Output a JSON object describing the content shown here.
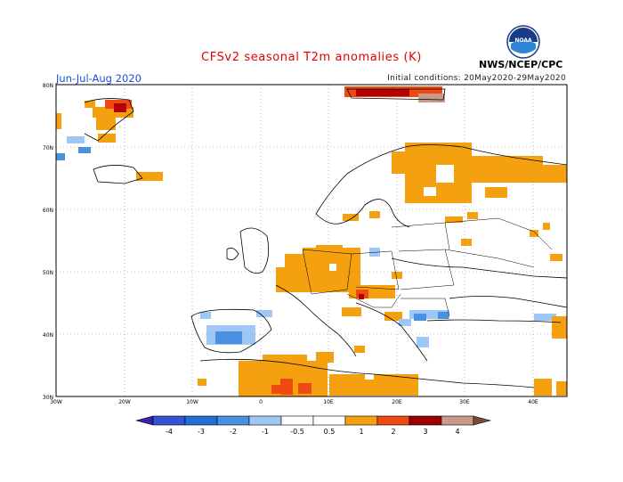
{
  "header": {
    "title": "CFSv2 seasonal T2m anomalies (K)",
    "season": "Jun-Jul-Aug 2020",
    "initial_conditions": "Initial conditions: 20May2020-29May2020",
    "agency": "NWS/NCEP/CPC",
    "logo_text": "NOAA"
  },
  "map": {
    "lat_labels": [
      "80N",
      "70N",
      "60N",
      "50N",
      "40N",
      "30N"
    ],
    "lon_labels": [
      "30W",
      "20W",
      "10W",
      "0",
      "10E",
      "20E",
      "30E",
      "40E"
    ],
    "land_color": "#ffffff",
    "coastline_color": "#000000"
  },
  "colorbar": {
    "labels": [
      "-4",
      "-3",
      "-2",
      "-1",
      "-0.5",
      "0.5",
      "1",
      "2",
      "3",
      "4"
    ],
    "colors": [
      "#3a1fb3",
      "#3355d1",
      "#1f6fd6",
      "#4a90e2",
      "#9fc7f5",
      "#ffffff",
      "#f5a10f",
      "#ee4a12",
      "#9b0000",
      "#c79a8c",
      "#7b4a3a"
    ]
  },
  "anomaly_palette": {
    "warm_1": "#f5a10f",
    "warm_2": "#ee4a12",
    "warm_3": "#b30000",
    "cool_1": "#9fc7f5"
  }
}
